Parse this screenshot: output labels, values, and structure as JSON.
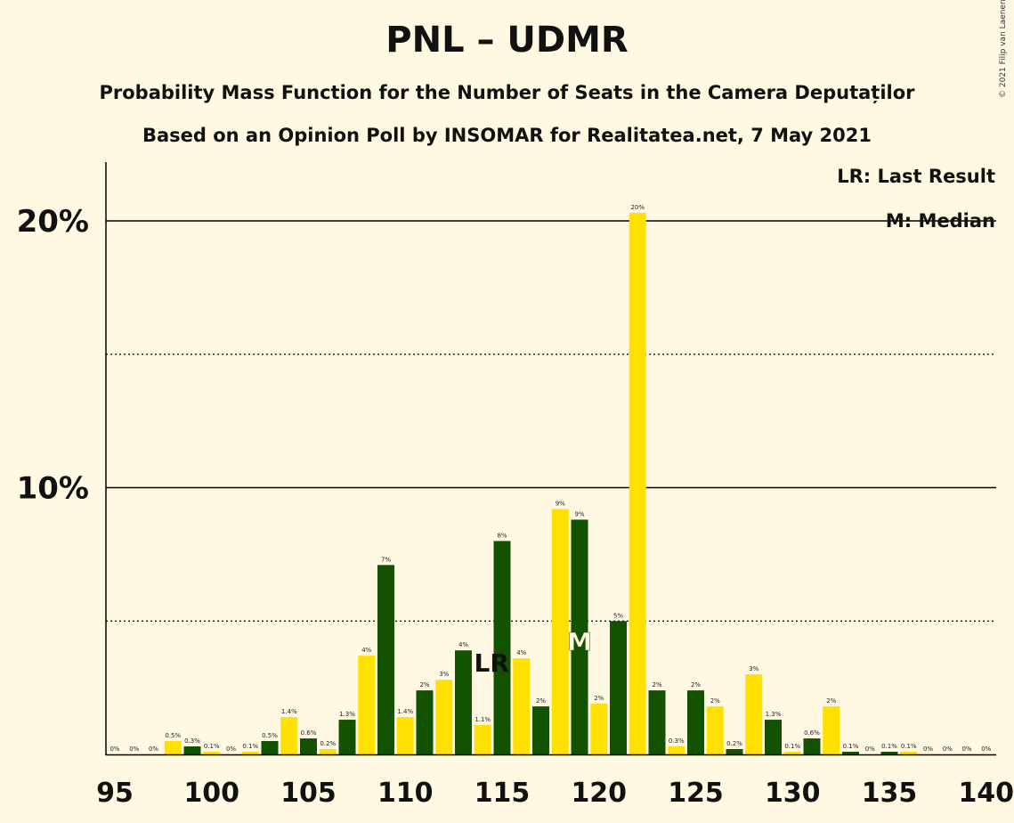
{
  "title": "PNL – UDMR",
  "subtitle1": "Probability Mass Function for the Number of Seats in the Camera Deputaților",
  "subtitle2": "Based on an Opinion Poll by INSOMAR for Realitatea.net, 7 May 2021",
  "copyright": "© 2021 Filip van Laenen",
  "legend": {
    "lr": "LR: Last Result",
    "median": "M: Median"
  },
  "colors": {
    "green": "#135200",
    "yellow": "#ffe000",
    "background": "#fff9e3"
  },
  "chart_data": {
    "type": "bar",
    "x": [
      95,
      96,
      97,
      98,
      99,
      100,
      101,
      102,
      103,
      104,
      105,
      106,
      107,
      108,
      109,
      110,
      111,
      112,
      113,
      114,
      115,
      116,
      117,
      118,
      119,
      120,
      121,
      122,
      123,
      124,
      125,
      126,
      127,
      128,
      129,
      130,
      131,
      132,
      133,
      134,
      135,
      136,
      137,
      138,
      139,
      140
    ],
    "values": [
      0,
      0,
      0,
      0.5,
      0.3,
      0.1,
      0,
      0.1,
      0.5,
      1.4,
      0.6,
      0.2,
      1.3,
      3.7,
      7.1,
      1.4,
      2.4,
      2.8,
      3.9,
      1.1,
      8.0,
      3.6,
      1.8,
      9.2,
      8.8,
      1.9,
      5.0,
      20.3,
      2.4,
      0.3,
      2.4,
      1.8,
      0.2,
      3.0,
      1.3,
      0.1,
      0.6,
      1.8,
      0.1,
      0,
      0.1,
      0.1,
      0,
      0,
      0,
      0
    ],
    "labels": [
      "0%",
      "0%",
      "0%",
      "0.5%",
      "0.3%",
      "0.1%",
      "0%",
      "0.1%",
      "0.5%",
      "1.4%",
      "0.6%",
      "0.2%",
      "1.3%",
      "4%",
      "7%",
      "1.4%",
      "2%",
      "3%",
      "4%",
      "1.1%",
      "8%",
      "4%",
      "2%",
      "9%",
      "9%",
      "2%",
      "5%",
      "20%",
      "2%",
      "0.3%",
      "2%",
      "2%",
      "0.2%",
      "3%",
      "1.3%",
      "0.1%",
      "0.6%",
      "2%",
      "0.1%",
      "0%",
      "0.1%",
      "0.1%",
      "0%",
      "0%",
      "0%",
      "0%"
    ],
    "x_ticks": [
      "95",
      "100",
      "105",
      "110",
      "115",
      "120",
      "125",
      "130",
      "135",
      "140"
    ],
    "y_ticks": [
      {
        "value": 10,
        "label": "10%"
      },
      {
        "value": 20,
        "label": "20%"
      }
    ],
    "ylim": [
      0,
      22.2
    ],
    "last_result": 114,
    "median": 119,
    "markers": {
      "lr": "LR",
      "median": "M"
    }
  }
}
